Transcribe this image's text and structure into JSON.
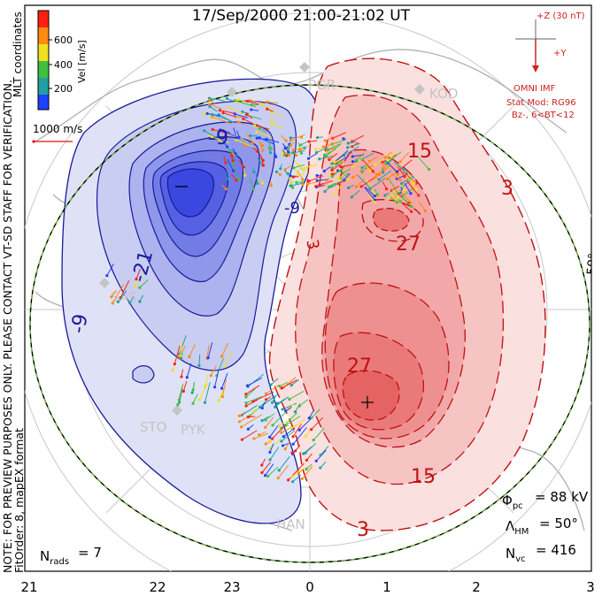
{
  "title": "17/Sep/2000 21:00-21:02 UT",
  "notes": {
    "preview": "NOTE: FOR PREVIEW PURPOSES ONLY. PLEASE CONTACT VT-SD STAFF FOR VERIFICATION.",
    "format": "FitOrder: 8,  mapEX format",
    "coords": "MLT coordinates"
  },
  "velocity_scale": {
    "label": "Vel [m/s]",
    "ticks": [
      "600",
      "400",
      "200"
    ],
    "colors": [
      "#ff2010",
      "#ff8a10",
      "#f0e020",
      "#40c040",
      "#20a0a0",
      "#2040ff"
    ],
    "reference_label": "1000 m/s"
  },
  "imf": {
    "z_label": "+Z (30 nT)",
    "y_label": "+Y",
    "source": "OMNI IMF",
    "model": "Stat Mod: RG96",
    "condition": "Bz-, 6<BT<12"
  },
  "stats": {
    "phi_pc": "88 kV",
    "lambda_hm": "50°",
    "n_vc": "416",
    "n_rads": "7"
  },
  "labels": {
    "lat_50": "50°",
    "radars": [
      "PGR",
      "KOD",
      "SAS",
      "STO",
      "PYK",
      "HAN"
    ]
  },
  "contours": {
    "neg_labels": [
      "-9",
      "-21",
      "-9"
    ],
    "pos_labels": [
      "15",
      "3",
      "27",
      "27",
      "15",
      "3"
    ]
  },
  "mlt_ticks": [
    "21",
    "22",
    "23",
    "0",
    "1",
    "2",
    "3"
  ],
  "colors": {
    "neg_fill": "#3a48f0",
    "neg_line": "#1a1a9a",
    "pos_fill": "#f05050",
    "pos_line": "#c01010",
    "boundary": "#70c040"
  }
}
